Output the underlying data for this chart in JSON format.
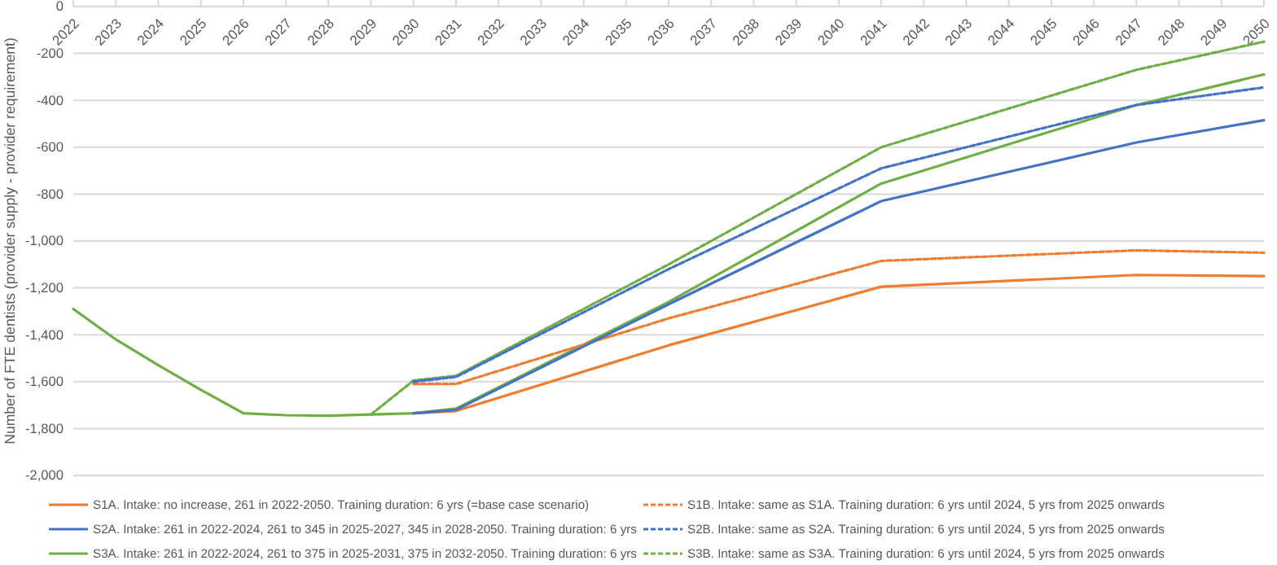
{
  "chart_data": {
    "type": "line",
    "ylabel": "Number of FTE dentists (provider supply - provider requirement)",
    "xlim": [
      2022,
      2050
    ],
    "xticks": [
      2022,
      2023,
      2024,
      2025,
      2026,
      2027,
      2028,
      2029,
      2030,
      2031,
      2032,
      2033,
      2034,
      2035,
      2036,
      2037,
      2038,
      2039,
      2040,
      2041,
      2042,
      2043,
      2044,
      2045,
      2046,
      2047,
      2048,
      2049,
      2050
    ],
    "ylim": [
      -2000,
      0
    ],
    "yticks": [
      {
        "value": -2000,
        "label": "-2,000"
      },
      {
        "value": -1800,
        "label": "-1,800"
      },
      {
        "value": -1600,
        "label": "-1,600"
      },
      {
        "value": -1400,
        "label": "-1,400"
      },
      {
        "value": -1200,
        "label": "-1,200"
      },
      {
        "value": -1000,
        "label": "-1,000"
      },
      -800,
      -600,
      -400,
      -200,
      0
    ],
    "grid": "y",
    "legend": "bottom",
    "series": [
      {
        "name": "S1A. Intake: no increase, 261 in 2022-2050. Training duration: 6 yrs (=base case scenario)",
        "color": "#ed7d31",
        "line_style": "solid",
        "x": [
          2030,
          2031,
          2036,
          2041,
          2047,
          2050
        ],
        "values": [
          -1735,
          -1725,
          -1445,
          -1195,
          -1145,
          -1150
        ]
      },
      {
        "name": "S1B. Intake: same as S1A. Training duration: 6 yrs until 2024, 5 yrs from 2025 onwards",
        "color": "#ed7d31",
        "line_style": "dashed",
        "x": [
          2030,
          2031,
          2036,
          2041,
          2047,
          2050
        ],
        "values": [
          -1610,
          -1610,
          -1330,
          -1085,
          -1040,
          -1050
        ]
      },
      {
        "name": "S2A. Intake: 261 in 2022-2024, 261 to 345 in 2025-2027, 345 in 2028-2050. Training duration: 6 yrs",
        "color": "#4472c4",
        "line_style": "solid",
        "x": [
          2030,
          2031,
          2036,
          2041,
          2047,
          2050
        ],
        "values": [
          -1735,
          -1720,
          -1270,
          -830,
          -580,
          -485
        ]
      },
      {
        "name": "S2B. Intake: same as S2A. Training duration: 6 yrs until 2024, 5 yrs from 2025 onwards",
        "color": "#4472c4",
        "line_style": "dashed",
        "x": [
          2030,
          2031,
          2036,
          2041,
          2047,
          2050
        ],
        "values": [
          -1600,
          -1580,
          -1120,
          -690,
          -420,
          -345
        ]
      },
      {
        "name": "S3A. Intake: 261 in 2022-2024, 261 to 375 in 2025-2031, 375 in 2032-2050. Training duration: 6 yrs",
        "color": "#70ad47",
        "line_style": "solid",
        "x": [
          2022,
          2023,
          2024,
          2025,
          2026,
          2027,
          2028,
          2029,
          2030,
          2031,
          2036,
          2041,
          2047,
          2050
        ],
        "values": [
          -1290,
          -1420,
          -1530,
          -1635,
          -1735,
          -1743,
          -1745,
          -1740,
          -1735,
          -1715,
          -1260,
          -755,
          -420,
          -290
        ]
      },
      {
        "name": "S3B. Intake: same as S3A. Training duration: 6 yrs until 2024, 5 yrs from 2025 onwards",
        "color": "#70ad47",
        "line_style": "dashed",
        "x": [
          2029,
          2030,
          2031,
          2036,
          2041,
          2047,
          2050
        ],
        "values": [
          -1740,
          -1595,
          -1575,
          -1100,
          -600,
          -270,
          -150
        ]
      }
    ]
  }
}
